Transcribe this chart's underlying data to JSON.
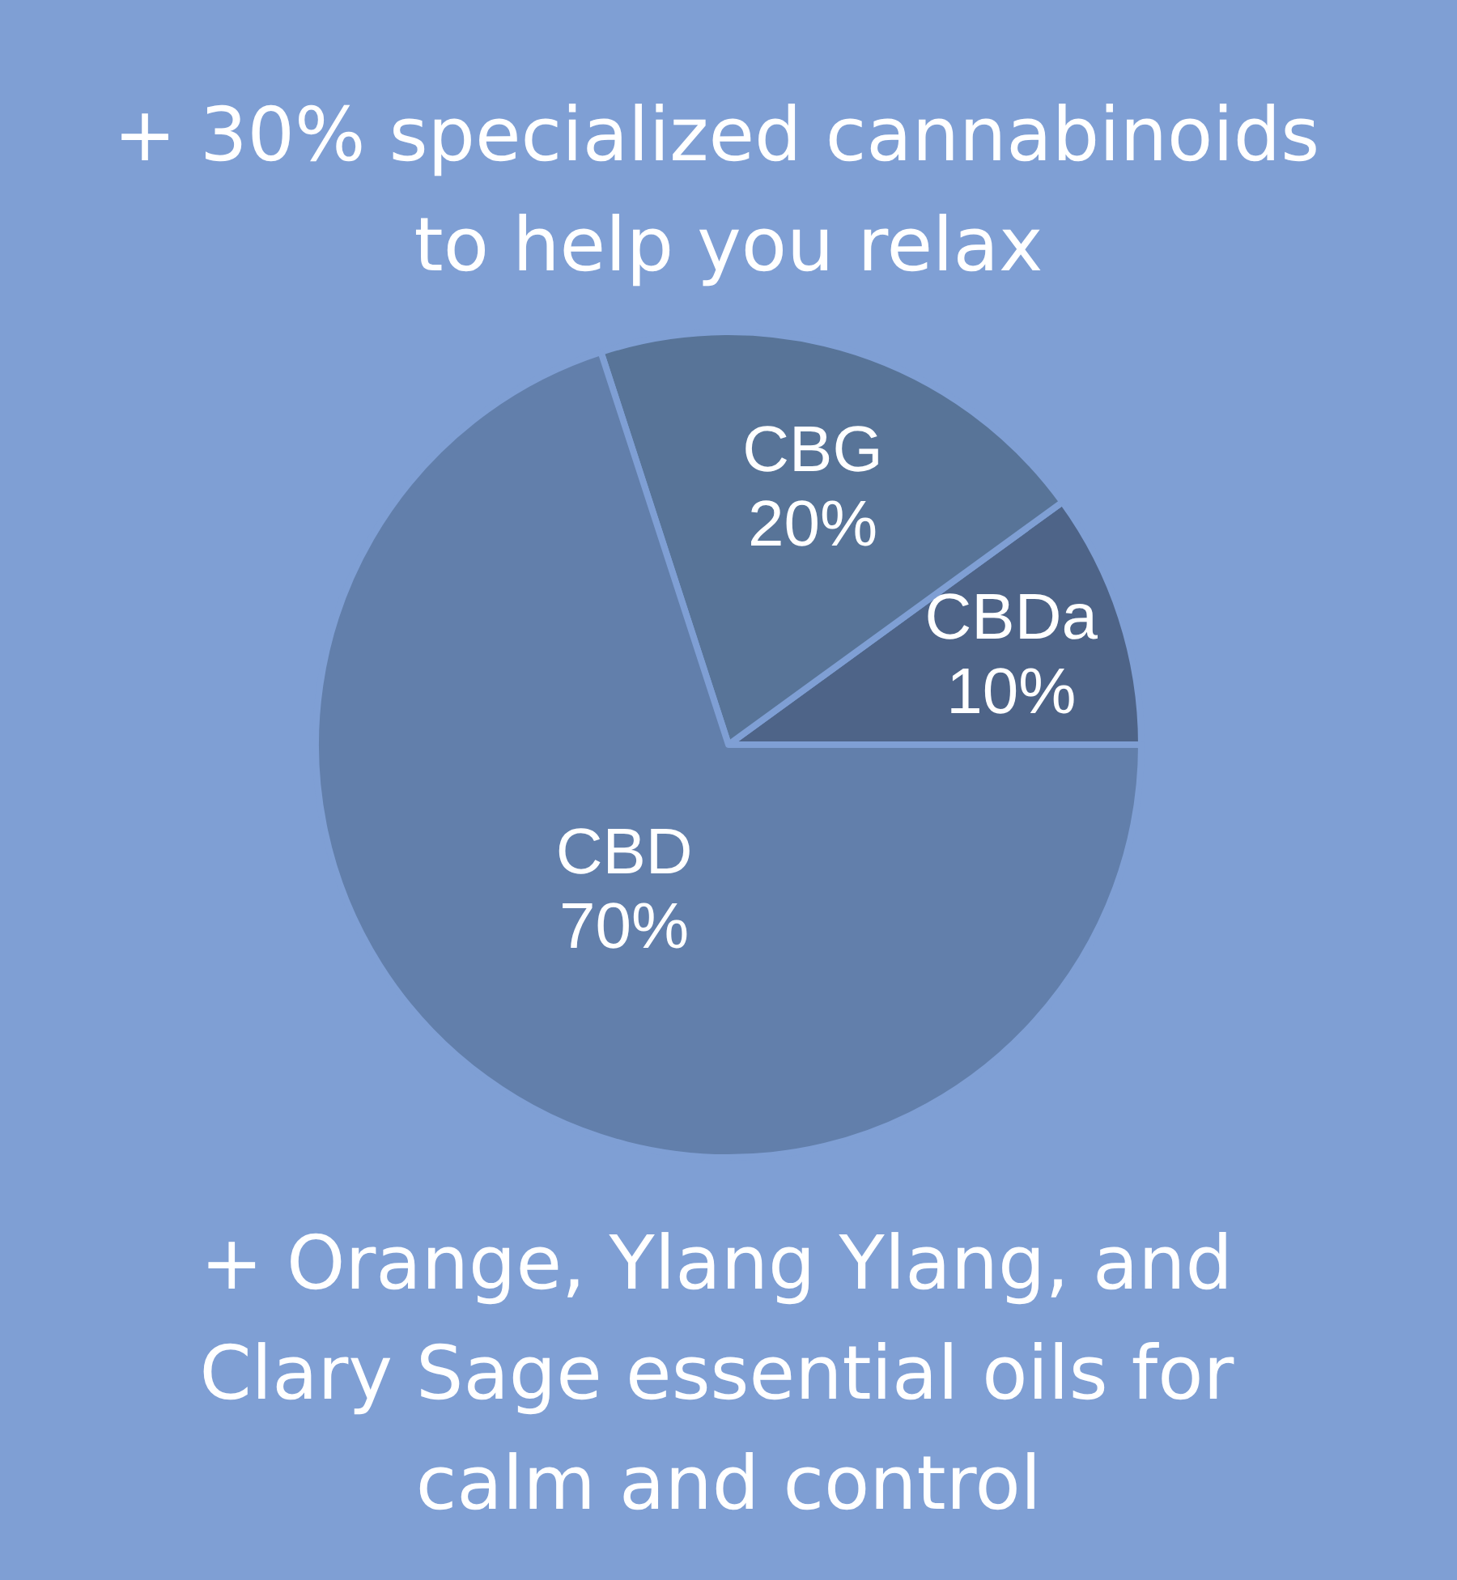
{
  "chart_data": {
    "type": "pie",
    "title": "+ 30% specialized cannabinoids to help you relax",
    "categories": [
      "CBDa",
      "CBG",
      "CBD"
    ],
    "values": [
      10,
      20,
      70
    ],
    "value_labels": [
      "10%",
      "20%",
      "70%"
    ],
    "colors": [
      "#4e6488",
      "#587498",
      "#627fab"
    ],
    "annotations": [
      "+ Orange, Ylang Ylang, and Clary Sage essential oils for calm and control"
    ],
    "legend": false
  }
}
